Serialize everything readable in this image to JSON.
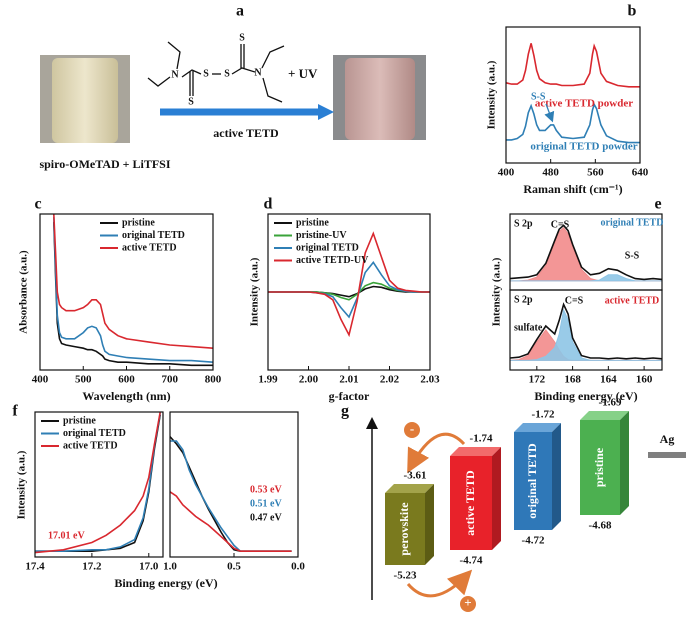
{
  "panel_labels": [
    "a",
    "b",
    "c",
    "d",
    "e",
    "f",
    "g"
  ],
  "scheme": {
    "atoms": [
      "N",
      "S",
      "S",
      "S",
      "S",
      "N"
    ],
    "uv": "+ UV",
    "product": "active TETD",
    "reactants": "spiro-OMeTAD + LiTFSI"
  },
  "chart_data": [
    {
      "type": "line",
      "xlabel": "Raman shift (cm⁻¹)",
      "ylabel": "Intensity (a.u.)",
      "xlim": [
        400,
        640
      ],
      "xticks": [
        400,
        480,
        560,
        640
      ],
      "ylim": [
        0,
        10
      ],
      "legend": "direct",
      "x": [
        400,
        410,
        420,
        430,
        435,
        440,
        445,
        450,
        455,
        460,
        470,
        480,
        485,
        490,
        500,
        520,
        540,
        550,
        555,
        558,
        562,
        570,
        580,
        600,
        620,
        640
      ],
      "series": [
        {
          "name": "active TETD powder",
          "color": "#d9282f",
          "values": [
            5.9,
            5.8,
            5.8,
            6.1,
            6.8,
            8.0,
            8.8,
            7.9,
            6.8,
            6.2,
            5.9,
            5.8,
            5.8,
            5.8,
            5.7,
            5.7,
            5.8,
            6.6,
            8.0,
            8.6,
            8.2,
            6.6,
            6.0,
            5.7,
            5.6,
            5.6
          ]
        },
        {
          "name": "original TETD powder",
          "color": "#2f7fb5",
          "values": [
            1.7,
            1.7,
            1.8,
            2.1,
            2.7,
            3.7,
            4.2,
            3.6,
            2.8,
            2.4,
            2.4,
            2.8,
            2.8,
            2.4,
            1.9,
            1.8,
            1.9,
            2.8,
            3.9,
            4.3,
            4.0,
            2.8,
            2.0,
            1.6,
            1.5,
            1.5
          ]
        }
      ],
      "annotations": [
        {
          "text": "S-S",
          "color": "#2f7fb5"
        }
      ]
    },
    {
      "type": "line",
      "xlabel": "Wavelength (nm)",
      "ylabel": "Absorbance (a.u.)",
      "xlim": [
        400,
        800
      ],
      "xticks": [
        400,
        500,
        600,
        700,
        800
      ],
      "ylim": [
        0,
        1
      ],
      "legend": "upper right",
      "x": [
        432,
        436,
        440,
        445,
        450,
        460,
        480,
        500,
        510,
        520,
        530,
        540,
        545,
        550,
        560,
        580,
        600,
        650,
        700,
        750,
        800
      ],
      "series": [
        {
          "name": "pristine",
          "color": "#111111",
          "values": [
            0.95,
            0.6,
            0.3,
            0.2,
            0.17,
            0.16,
            0.15,
            0.14,
            0.13,
            0.13,
            0.12,
            0.1,
            0.09,
            0.07,
            0.06,
            0.05,
            0.05,
            0.04,
            0.04,
            0.03,
            0.03
          ]
        },
        {
          "name": "original TETD",
          "color": "#2f7fb5",
          "values": [
            0.98,
            0.65,
            0.35,
            0.24,
            0.21,
            0.2,
            0.2,
            0.24,
            0.27,
            0.28,
            0.27,
            0.22,
            0.16,
            0.12,
            0.1,
            0.09,
            0.08,
            0.07,
            0.06,
            0.06,
            0.05
          ]
        },
        {
          "name": "active TETD",
          "color": "#d9282f",
          "values": [
            1.0,
            0.75,
            0.5,
            0.42,
            0.4,
            0.38,
            0.38,
            0.4,
            0.42,
            0.45,
            0.45,
            0.42,
            0.36,
            0.3,
            0.26,
            0.22,
            0.2,
            0.18,
            0.16,
            0.15,
            0.14
          ]
        }
      ]
    },
    {
      "type": "line",
      "xlabel": "g-factor",
      "ylabel": "Intensity (a.u.)",
      "xlim": [
        1.99,
        2.03
      ],
      "xticks": [
        1.99,
        {
          "value": 2.0,
          "label": "2.00"
        },
        2.01,
        2.02,
        2.03
      ],
      "ylim": [
        -1,
        1
      ],
      "legend": "upper left",
      "x": [
        1.99,
        1.992,
        1.994,
        1.996,
        1.998,
        2.0,
        2.002,
        2.004,
        2.006,
        2.008,
        2.01,
        2.012,
        2.014,
        2.016,
        2.018,
        2.02,
        2.022,
        2.024,
        2.026,
        2.028,
        2.03
      ],
      "series": [
        {
          "name": "pristine",
          "color": "#111111",
          "values": [
            0,
            0,
            0,
            0,
            0,
            0,
            0,
            -0.01,
            -0.02,
            -0.04,
            -0.06,
            -0.02,
            0.04,
            0.07,
            0.06,
            0.03,
            0.01,
            0,
            0,
            0,
            0
          ]
        },
        {
          "name": "pristine-UV",
          "color": "#3aa33a",
          "values": [
            0,
            0,
            0,
            0,
            0,
            0,
            0,
            -0.01,
            -0.03,
            -0.07,
            -0.1,
            -0.03,
            0.08,
            0.12,
            0.1,
            0.05,
            0.02,
            0.01,
            0,
            0,
            0
          ]
        },
        {
          "name": "original TETD",
          "color": "#2f7fb5",
          "values": [
            0,
            0,
            0,
            0,
            0,
            0,
            -0.01,
            -0.02,
            -0.06,
            -0.2,
            -0.32,
            -0.08,
            0.25,
            0.38,
            0.22,
            0.08,
            0.03,
            0.01,
            0,
            0,
            0
          ]
        },
        {
          "name": "active TETD-UV",
          "color": "#d9282f",
          "values": [
            0,
            0,
            0,
            0,
            0,
            0,
            -0.01,
            -0.03,
            -0.1,
            -0.35,
            -0.55,
            -0.12,
            0.5,
            0.75,
            0.45,
            0.15,
            0.05,
            0.02,
            0.01,
            0,
            0
          ]
        }
      ]
    },
    {
      "type": "line",
      "ylabel": "Intensity (a.u.)",
      "xlim": [
        175,
        158
      ],
      "ylim": [
        0,
        1
      ],
      "x": [
        175,
        174,
        173,
        172,
        171,
        170,
        169.5,
        169,
        168.5,
        168,
        167,
        166,
        165,
        164,
        163,
        162,
        161,
        160,
        159,
        158
      ],
      "series": [
        {
          "color": "#f28b8b",
          "fill": true,
          "values": [
            0.12,
            0.12,
            0.13,
            0.17,
            0.32,
            0.62,
            0.77,
            0.82,
            0.74,
            0.57,
            0.27,
            0.15,
            0.12,
            0.12,
            0.12,
            0.12,
            0.12,
            0.12,
            0.12,
            0.12
          ]
        },
        {
          "color": "#8ec5e6",
          "fill": true,
          "values": [
            0.12,
            0.12,
            0.12,
            0.12,
            0.12,
            0.12,
            0.12,
            0.12,
            0.12,
            0.12,
            0.12,
            0.12,
            0.13,
            0.2,
            0.2,
            0.15,
            0.12,
            0.12,
            0.12,
            0.12
          ]
        },
        {
          "color": "#111111",
          "values": [
            0.15,
            0.16,
            0.17,
            0.2,
            0.35,
            0.65,
            0.8,
            0.85,
            0.78,
            0.6,
            0.3,
            0.2,
            0.22,
            0.28,
            0.26,
            0.2,
            0.15,
            0.14,
            0.15,
            0.14
          ]
        }
      ],
      "annotations": [
        {
          "text": "S 2p",
          "color": "#111111"
        },
        {
          "text": "C=S",
          "color": "#111111"
        },
        {
          "text": "S-S",
          "color": "#111111"
        },
        {
          "text": "original TETD",
          "color": "#2f7fb5"
        }
      ]
    },
    {
      "type": "line",
      "xlabel": "Binding energy (eV)",
      "xlim": [
        175,
        158
      ],
      "xticks": [
        172,
        168,
        164,
        160
      ],
      "ylim": [
        0,
        1
      ],
      "x": [
        175,
        174,
        173,
        172,
        171,
        170,
        169.5,
        169,
        168.5,
        168,
        167,
        166,
        165,
        164,
        163,
        162,
        161,
        160,
        159,
        158
      ],
      "series": [
        {
          "color": "#f28b8b",
          "fill": true,
          "values": [
            0.12,
            0.13,
            0.18,
            0.35,
            0.5,
            0.35,
            0.25,
            0.17,
            0.13,
            0.12,
            0.12,
            0.12,
            0.12,
            0.12,
            0.12,
            0.12,
            0.12,
            0.12,
            0.12,
            0.12
          ]
        },
        {
          "color": "#8ec5e6",
          "fill": true,
          "values": [
            0.12,
            0.12,
            0.12,
            0.13,
            0.17,
            0.28,
            0.45,
            0.75,
            0.63,
            0.35,
            0.15,
            0.12,
            0.12,
            0.12,
            0.12,
            0.12,
            0.12,
            0.12,
            0.12,
            0.12
          ]
        },
        {
          "color": "#111111",
          "values": [
            0.15,
            0.16,
            0.2,
            0.38,
            0.55,
            0.45,
            0.62,
            0.82,
            0.7,
            0.4,
            0.18,
            0.15,
            0.15,
            0.14,
            0.15,
            0.14,
            0.15,
            0.14,
            0.15,
            0.14
          ]
        }
      ],
      "annotations": [
        {
          "text": "S 2p",
          "color": "#111111"
        },
        {
          "text": "C=S",
          "color": "#111111"
        },
        {
          "text": "sulfate",
          "color": "#111111"
        },
        {
          "text": "active TETD",
          "color": "#d9282f"
        }
      ]
    },
    {
      "type": "line",
      "xlabel": "Binding energy (eV)",
      "ylabel": "Intensity (a.u.)",
      "xlim": [
        17.4,
        16.95
      ],
      "xticks": [
        17.4,
        17.2,
        {
          "value": 17.0,
          "label": "17.0"
        }
      ],
      "ylim": [
        0,
        1
      ],
      "legend": "upper left",
      "x": [
        17.4,
        17.3,
        17.2,
        17.15,
        17.1,
        17.05,
        17.02,
        17.0,
        16.98,
        16.96
      ],
      "series": [
        {
          "name": "pristine",
          "color": "#111111",
          "values": [
            0.04,
            0.04,
            0.04,
            0.05,
            0.06,
            0.1,
            0.25,
            0.45,
            0.75,
            0.98
          ]
        },
        {
          "name": "original TETD",
          "color": "#2f7fb5",
          "values": [
            0.04,
            0.04,
            0.05,
            0.05,
            0.07,
            0.12,
            0.27,
            0.47,
            0.77,
            0.99
          ]
        },
        {
          "name": "active TETD",
          "color": "#d9282f",
          "values": [
            0.03,
            0.05,
            0.1,
            0.15,
            0.22,
            0.32,
            0.42,
            0.55,
            0.78,
            1.0
          ]
        }
      ],
      "annotations": [
        {
          "text": "17.01 eV",
          "color": "#d9282f"
        }
      ]
    },
    {
      "type": "line",
      "xlim": [
        1.0,
        0.0
      ],
      "xticks": [
        {
          "value": 1.0,
          "label": "1.0"
        },
        0.5,
        {
          "value": 0.0,
          "label": "0.0"
        }
      ],
      "ylim": [
        0,
        1
      ],
      "x": [
        1.0,
        0.95,
        0.9,
        0.85,
        0.8,
        0.75,
        0.7,
        0.65,
        0.6,
        0.55,
        0.5,
        0.45,
        0.4,
        0.3,
        0.2,
        0.1,
        0.05
      ],
      "series": [
        {
          "color": "#111111",
          "values": [
            0.83,
            0.78,
            0.72,
            0.62,
            0.52,
            0.42,
            0.33,
            0.25,
            0.17,
            0.1,
            0.05,
            0.04,
            0.04,
            0.04,
            0.04,
            0.04,
            0.04
          ]
        },
        {
          "color": "#2f7fb5",
          "values": [
            0.8,
            0.8,
            0.74,
            0.6,
            0.5,
            0.42,
            0.34,
            0.27,
            0.2,
            0.14,
            0.08,
            0.04,
            0.04,
            0.04,
            0.04,
            0.04,
            0.04
          ]
        },
        {
          "color": "#d9282f",
          "values": [
            0.45,
            0.42,
            0.36,
            0.32,
            0.28,
            0.25,
            0.22,
            0.18,
            0.14,
            0.1,
            0.06,
            0.04,
            0.04,
            0.04,
            0.04,
            0.04,
            0.04
          ]
        }
      ],
      "annotations": [
        {
          "text": "0.53 eV",
          "color": "#d9282f"
        },
        {
          "text": "0.51 eV",
          "color": "#2f7fb5"
        },
        {
          "text": "0.47 eV",
          "color": "#111111"
        }
      ]
    }
  ],
  "energy_diagram": {
    "levels": [
      {
        "label": "perovskite",
        "top": -3.61,
        "bottom": -5.23
      },
      {
        "label": "active TETD",
        "top": -1.74,
        "bottom": -4.74
      },
      {
        "label": "original TETD",
        "top": -1.72,
        "bottom": -4.72
      },
      {
        "label": "pristine",
        "top": -1.69,
        "bottom": -4.68
      }
    ],
    "electrode": "Ag",
    "minus": "-",
    "plus": "+"
  }
}
